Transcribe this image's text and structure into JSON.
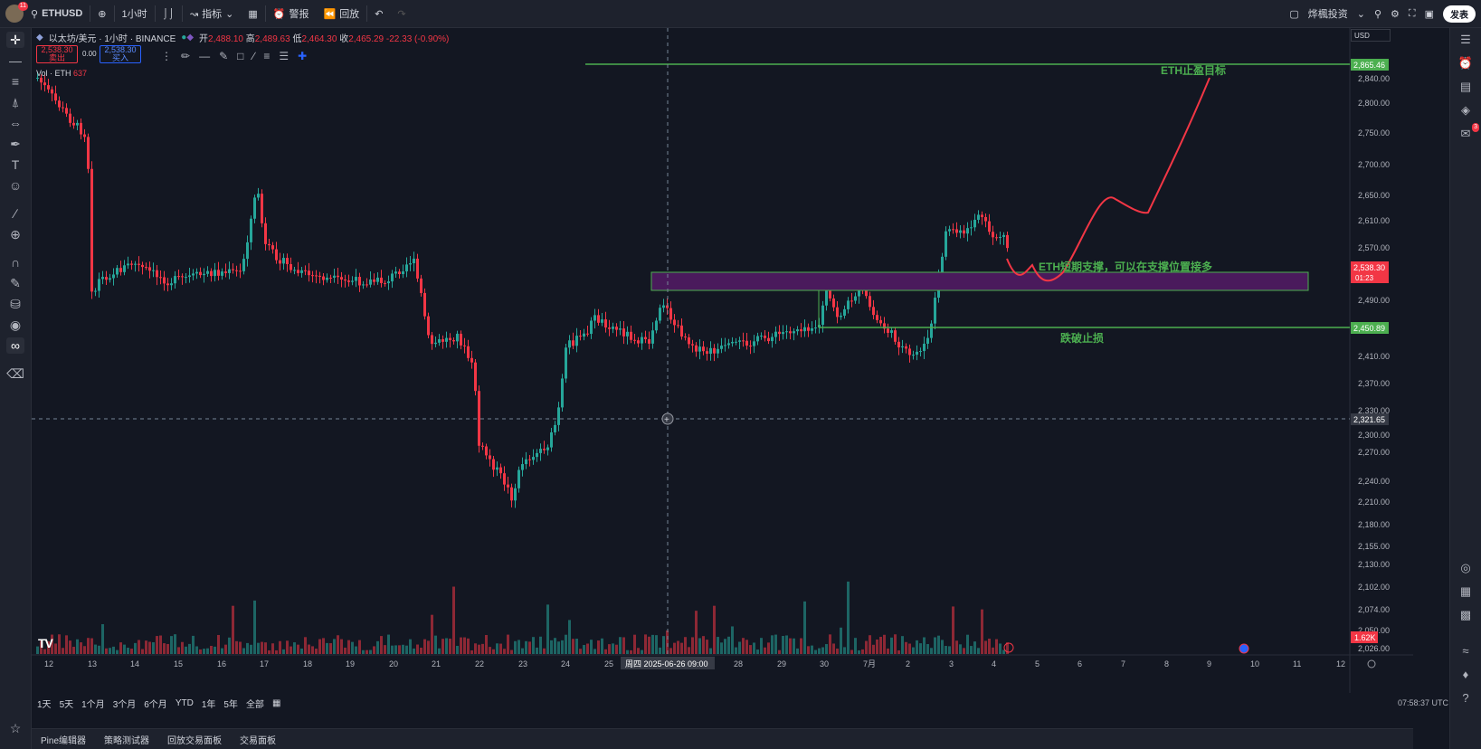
{
  "topbar": {
    "avatar_badge": "11",
    "symbol": "ETHUSD",
    "interval": "1小时",
    "indicators": "指标",
    "alert": "警报",
    "replay": "回放",
    "workspace": "烨楓投资",
    "publish": "发表"
  },
  "legend": {
    "name": "以太坊/美元 · 1小时 · BINANCE",
    "open_label": "开",
    "open": "2,488.10",
    "high_label": "高",
    "high": "2,489.63",
    "low_label": "低",
    "low": "2,464.30",
    "close_label": "收",
    "close": "2,465.29",
    "change": "-22.33 (-0.90%)",
    "sell_price": "2,538.30",
    "sell_label": "卖出",
    "spread": "0.00",
    "buy_price": "2,538.30",
    "buy_label": "买入",
    "vol_label": "Vol · ETH",
    "vol_value": "637"
  },
  "currency": "USD",
  "price_axis": [
    "2,840.00",
    "2,800.00",
    "2,750.00",
    "2,700.00",
    "2,650.00",
    "2,610.00",
    "2,570.00",
    "2,490.00",
    "2,410.00",
    "2,370.00",
    "2,330.00",
    "2,300.00",
    "2,270.00",
    "2,240.00",
    "2,210.00",
    "2,180.00",
    "2,155.00",
    "2,130.00",
    "2,102.00",
    "2,074.00",
    "2,050.00",
    "2,026.00"
  ],
  "price_tags": {
    "target": "2,865.46",
    "current": "2,538.30",
    "countdown": "01:23",
    "stop": "2,450.89",
    "crosshair": "2,321.65",
    "volume": "1.62K"
  },
  "annotations": {
    "target": "ETH止盈目标",
    "support": "ETH短期支撑，可以在支撑位置接多",
    "stop": "跌破止损"
  },
  "time_axis": [
    "12",
    "13",
    "14",
    "15",
    "16",
    "17",
    "18",
    "19",
    "20",
    "21",
    "22",
    "23",
    "24",
    "25",
    "28",
    "29",
    "30",
    "7月",
    "2",
    "3",
    "4",
    "5",
    "6",
    "7",
    "8",
    "9",
    "10",
    "11",
    "12"
  ],
  "crosshair_time": "周四 2025-06-26  09:00",
  "ranges": [
    "1天",
    "5天",
    "1个月",
    "3个月",
    "6个月",
    "YTD",
    "1年",
    "5年",
    "全部"
  ],
  "clock": "07:58:37 UTC",
  "panels": [
    "Pine编辑器",
    "策略测试器",
    "回放交易面板",
    "交易面板"
  ],
  "colors": {
    "up": "#26a69a",
    "down": "#f23645",
    "level": "#4caf50",
    "zone": "#4a1a5c",
    "projection": "#f23645"
  },
  "right_badge": "3"
}
